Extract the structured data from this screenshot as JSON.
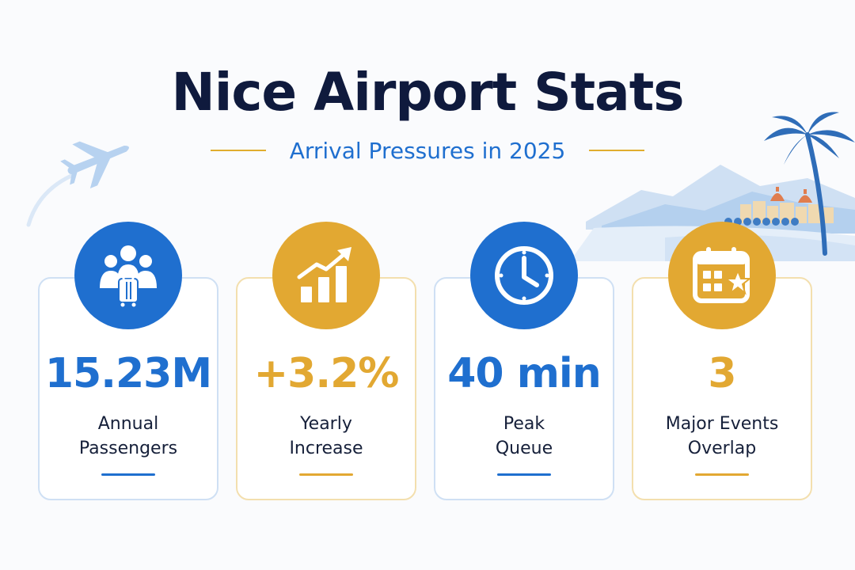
{
  "header": {
    "title": "Nice Airport Stats",
    "subtitle": "Arrival Pressures in 2025"
  },
  "colors": {
    "blue": "#1f6fcf",
    "gold": "#e2a832",
    "navy": "#0f1a3d"
  },
  "stats": [
    {
      "value": "15.23M",
      "label_line1": "Annual",
      "label_line2": "Passengers",
      "icon": "passengers-luggage-icon",
      "color": "blue"
    },
    {
      "value": "+3.2%",
      "label_line1": "Yearly",
      "label_line2": "Increase",
      "icon": "growth-chart-icon",
      "color": "gold"
    },
    {
      "value": "40 min",
      "label_line1": "Peak",
      "label_line2": "Queue",
      "icon": "clock-icon",
      "color": "blue"
    },
    {
      "value": "3",
      "label_line1": "Major Events",
      "label_line2": "Overlap",
      "icon": "calendar-star-icon",
      "color": "gold"
    }
  ],
  "decorations": {
    "left": "airplane-icon",
    "right": "riviera-coast-illustration"
  }
}
